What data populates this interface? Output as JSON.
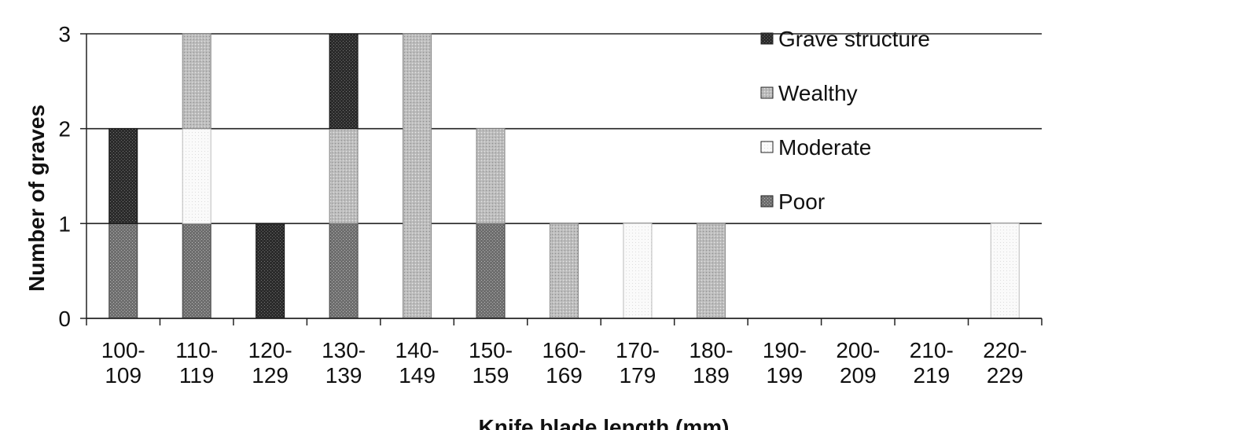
{
  "chart_data": {
    "type": "bar",
    "stacked": true,
    "xlabel": "Knife blade length (mm)",
    "ylabel": "Number of graves",
    "ylim": [
      0,
      3
    ],
    "yticks": [
      0,
      1,
      2,
      3
    ],
    "grid": true,
    "legend_position": "top-right",
    "categories": [
      [
        "100-",
        "109"
      ],
      [
        "110-",
        "119"
      ],
      [
        "120-",
        "129"
      ],
      [
        "130-",
        "139"
      ],
      [
        "140-",
        "149"
      ],
      [
        "150-",
        "159"
      ],
      [
        "160-",
        "169"
      ],
      [
        "170-",
        "179"
      ],
      [
        "180-",
        "189"
      ],
      [
        "190-",
        "199"
      ],
      [
        "200-",
        "209"
      ],
      [
        "210-",
        "219"
      ],
      [
        "220-",
        "229"
      ]
    ],
    "series": [
      {
        "name": "Poor",
        "color": "#6e6e6e",
        "values": [
          1,
          1,
          0,
          1,
          0,
          1,
          0,
          0,
          0,
          0,
          0,
          0,
          0
        ]
      },
      {
        "name": "Moderate",
        "color": "#f4f4f4",
        "values": [
          0,
          1,
          0,
          0,
          0,
          0,
          0,
          1,
          0,
          0,
          0,
          0,
          1
        ]
      },
      {
        "name": "Wealthy",
        "color": "#bdbdbd",
        "values": [
          0,
          1,
          0,
          1,
          3,
          1,
          1,
          0,
          1,
          0,
          0,
          0,
          0
        ]
      },
      {
        "name": "Grave structure",
        "color": "#2b2b2b",
        "values": [
          1,
          0,
          1,
          1,
          0,
          0,
          0,
          0,
          0,
          0,
          0,
          0,
          0
        ]
      }
    ],
    "legend_order": [
      "Grave structure",
      "Wealthy",
      "Moderate",
      "Poor"
    ]
  }
}
